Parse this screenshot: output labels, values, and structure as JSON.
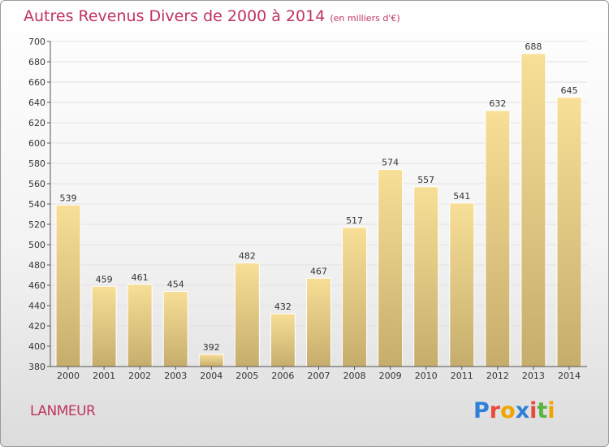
{
  "header": {
    "title": "Autres Revenus Divers de 2000 à 2014",
    "subtitle": "(en milliers d'€)"
  },
  "footer": {
    "place": "LANMEUR",
    "logo_text": "Proxiti",
    "logo_colors": [
      "#2e7fd8",
      "#e84a3b",
      "#f0a400",
      "#2e7fd8",
      "#e84a3b",
      "#57b43c",
      "#f0a400"
    ]
  },
  "colors": {
    "title": "#c0345e",
    "bar_light": "#f8df97",
    "bar_dark": "#c6ad6c",
    "axis": "#555555"
  },
  "chart_data": {
    "type": "bar",
    "title": "Autres Revenus Divers de 2000 à 2014",
    "subtitle": "(en milliers d'€)",
    "categories": [
      "2000",
      "2001",
      "2002",
      "2003",
      "2004",
      "2005",
      "2006",
      "2007",
      "2008",
      "2009",
      "2010",
      "2011",
      "2012",
      "2013",
      "2014"
    ],
    "values": [
      539,
      459,
      461,
      454,
      392,
      482,
      432,
      467,
      517,
      574,
      557,
      541,
      632,
      688,
      645
    ],
    "ylim": [
      380,
      700
    ],
    "yticks": [
      380,
      400,
      420,
      440,
      460,
      480,
      500,
      520,
      540,
      560,
      580,
      600,
      620,
      640,
      660,
      680,
      700
    ],
    "grid": true,
    "legend": "none"
  }
}
